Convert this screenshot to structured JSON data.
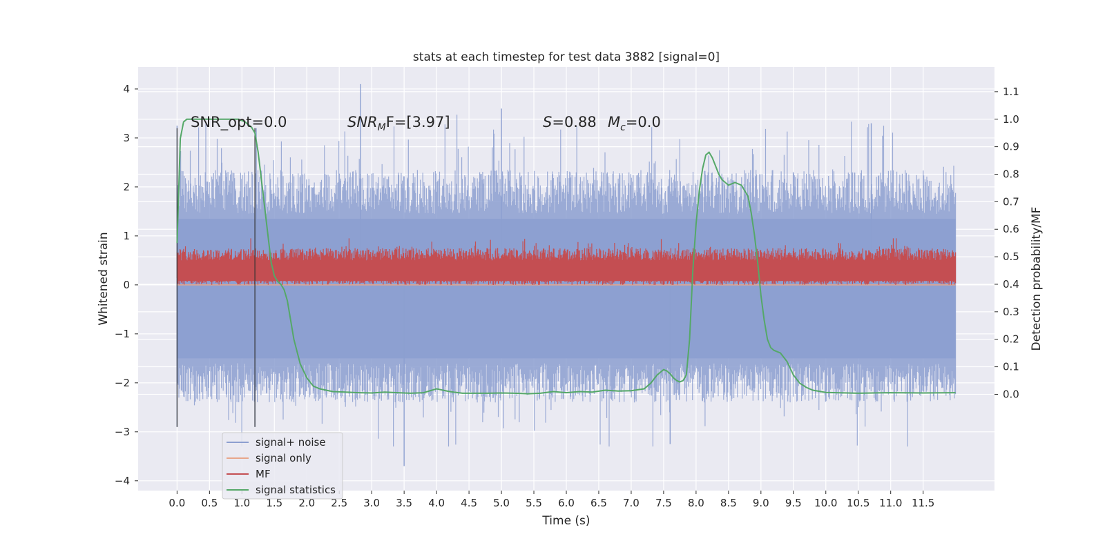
{
  "chart_data": {
    "type": "line",
    "title": "stats at each timestep for test data 3882 [signal=0]",
    "xlabel": "Time (s)",
    "ylabel": "Whitened strain",
    "ylabel_right": "Detection probability/MF",
    "xlim": [
      -0.6,
      12.6
    ],
    "ylim": [
      -4.2,
      4.45
    ],
    "ylim_right": [
      -0.35,
      1.19
    ],
    "x_ticks": [
      "0.0",
      "0.5",
      "1.0",
      "1.5",
      "2.0",
      "2.5",
      "3.0",
      "3.5",
      "4.0",
      "4.5",
      "5.0",
      "5.5",
      "6.0",
      "6.5",
      "7.0",
      "7.5",
      "8.0",
      "8.5",
      "9.0",
      "9.5",
      "10.0",
      "10.5",
      "11.0",
      "11.5"
    ],
    "y_ticks": [
      "4",
      "3",
      "2",
      "1",
      "0",
      "−1",
      "−2",
      "−3",
      "−4"
    ],
    "y_ticks_right": [
      "1.1",
      "1.0",
      "0.9",
      "0.8",
      "0.7",
      "0.6",
      "0.5",
      "0.4",
      "0.3",
      "0.2",
      "0.1",
      "0.0"
    ],
    "annotations": {
      "snr_opt": "SNR_opt=0.0",
      "snr_mf_sym": "SNR",
      "snr_mf_sub": "M",
      "snr_mf_rest": "F=[3.97]",
      "s_sym": "S",
      "s_rest": "=0.88",
      "mc_sym": "M",
      "mc_sub": "c",
      "mc_rest": "=0.0"
    },
    "vlines": [
      0.0,
      1.2
    ],
    "series": [
      {
        "name": "signal+ noise",
        "color": "#8c9fd0",
        "envelope": {
          "x_range": [
            0.0,
            12.0
          ],
          "core_range": [
            -1.6,
            1.45
          ],
          "spike_max": 4.1,
          "spike_min": -3.7
        }
      },
      {
        "name": "signal only",
        "color": "#e8a68a",
        "constant": 0.0
      },
      {
        "name": "MF",
        "color": "#c44e52",
        "band": [
          0.0,
          0.75
        ],
        "peak": 0.95
      },
      {
        "name": "signal statistics",
        "color": "#55a868",
        "axis": "right",
        "x": [
          0.0,
          0.05,
          0.1,
          0.15,
          0.25,
          0.4,
          0.6,
          0.8,
          0.95,
          1.05,
          1.15,
          1.2,
          1.25,
          1.3,
          1.35,
          1.4,
          1.45,
          1.5,
          1.55,
          1.6,
          1.65,
          1.7,
          1.75,
          1.8,
          1.9,
          2.0,
          2.1,
          2.2,
          2.4,
          2.6,
          2.8,
          3.0,
          3.2,
          3.4,
          3.6,
          3.8,
          4.0,
          4.2,
          4.4,
          4.6,
          4.8,
          5.0,
          5.2,
          5.4,
          5.6,
          5.8,
          6.0,
          6.2,
          6.4,
          6.6,
          6.8,
          7.0,
          7.2,
          7.3,
          7.4,
          7.5,
          7.55,
          7.6,
          7.65,
          7.7,
          7.75,
          7.8,
          7.85,
          7.9,
          7.95,
          8.0,
          8.05,
          8.1,
          8.15,
          8.2,
          8.25,
          8.3,
          8.35,
          8.4,
          8.5,
          8.6,
          8.7,
          8.8,
          8.85,
          8.9,
          8.95,
          9.0,
          9.05,
          9.1,
          9.15,
          9.2,
          9.3,
          9.4,
          9.5,
          9.6,
          9.7,
          9.8,
          10.0,
          10.5,
          11.0,
          11.5,
          12.0
        ],
        "y": [
          0.55,
          0.93,
          0.99,
          1.0,
          1.0,
          1.0,
          1.0,
          1.0,
          1.0,
          0.99,
          0.97,
          0.95,
          0.88,
          0.78,
          0.68,
          0.58,
          0.48,
          0.43,
          0.41,
          0.4,
          0.38,
          0.34,
          0.27,
          0.2,
          0.11,
          0.06,
          0.03,
          0.02,
          0.01,
          0.008,
          0.006,
          0.005,
          0.008,
          0.006,
          0.004,
          0.006,
          0.02,
          0.01,
          0.004,
          0.004,
          0.004,
          0.005,
          0.004,
          0.002,
          0.004,
          0.01,
          0.006,
          0.01,
          0.008,
          0.015,
          0.012,
          0.013,
          0.02,
          0.04,
          0.07,
          0.09,
          0.085,
          0.075,
          0.06,
          0.05,
          0.045,
          0.05,
          0.07,
          0.2,
          0.45,
          0.62,
          0.74,
          0.82,
          0.87,
          0.88,
          0.86,
          0.83,
          0.8,
          0.78,
          0.76,
          0.77,
          0.76,
          0.72,
          0.66,
          0.58,
          0.48,
          0.36,
          0.27,
          0.2,
          0.17,
          0.16,
          0.15,
          0.12,
          0.07,
          0.04,
          0.025,
          0.015,
          0.007,
          0.004,
          0.006,
          0.005,
          0.006
        ]
      }
    ]
  }
}
